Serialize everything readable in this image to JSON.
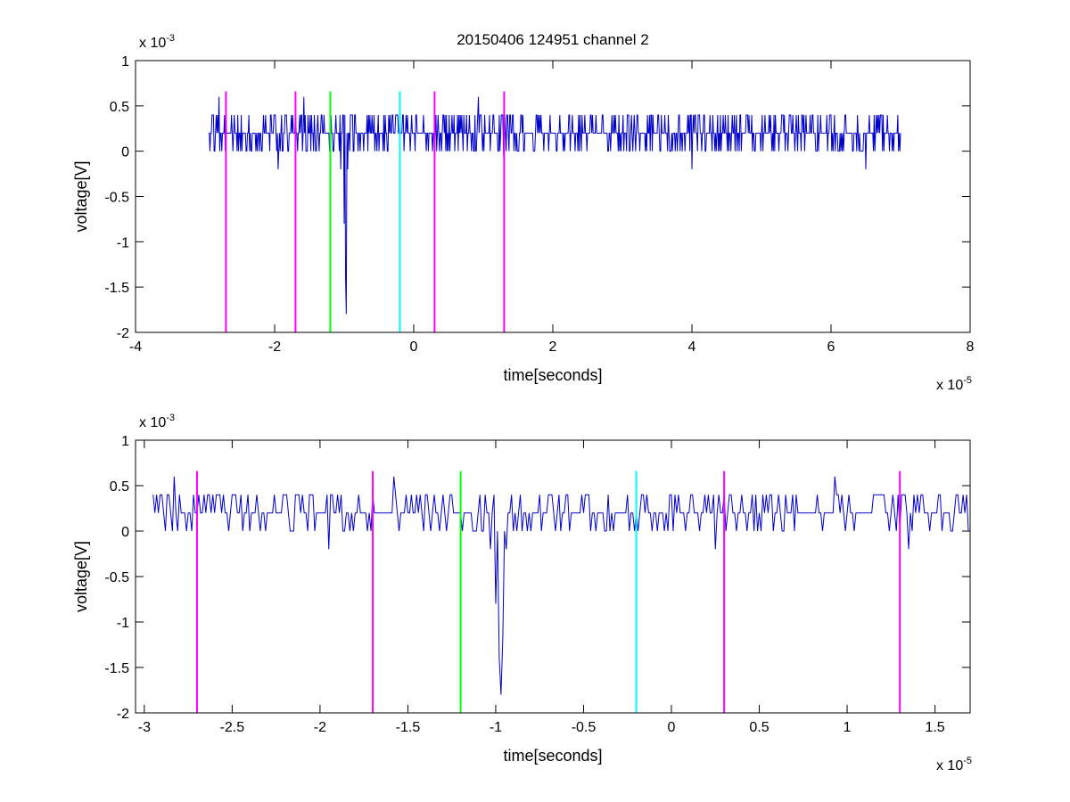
{
  "chart_data": [
    {
      "type": "line",
      "title": "20150406 124951 channel 2",
      "xlabel": "time[seconds]",
      "ylabel": "voltage[V]",
      "x_exponent_label": "x 10",
      "x_exponent": "-5",
      "y_exponent_label": "x 10",
      "y_exponent": "-3",
      "x_scale": 1e-05,
      "y_scale": 0.001,
      "xlim": [
        -4e-05,
        8e-05
      ],
      "ylim": [
        -0.002,
        0.001
      ],
      "x_ticks": [
        -4e-05,
        -2e-05,
        0,
        2e-05,
        4e-05,
        6e-05,
        8e-05
      ],
      "x_tick_labels": [
        "-4",
        "-2",
        "0",
        "2",
        "4",
        "6",
        "8"
      ],
      "y_ticks": [
        -0.002,
        -0.0015,
        -0.001,
        -0.0005,
        0,
        0.0005,
        0.001
      ],
      "y_tick_labels": [
        "-2",
        "-1.5",
        "-1",
        "-0.5",
        "0",
        "0.5",
        "1"
      ],
      "grid": false,
      "series": [
        {
          "x_start": -2.95e-05,
          "x_step": 1e-07,
          "x_end": 7e-05,
          "color": "#0000cc",
          "y_levels": [
            0.0002,
            0.0004,
            0,
            0.0002,
            0.0002,
            0.0004,
            0.0002,
            0,
            0.0002,
            0.0004,
            0.0002,
            0.0002,
            0.0004,
            0.0002,
            0,
            0.0002
          ],
          "spikes": [
            {
              "x": -2.9e-05,
              "y": 0.0004
            },
            {
              "x": -2.8e-05,
              "y": 0.0006
            },
            {
              "x": -2.7e-05,
              "y": 0.0004
            },
            {
              "x": -1.95e-05,
              "y": -0.0002
            },
            {
              "x": -1.7e-05,
              "y": 0.0005
            },
            {
              "x": -1.58e-05,
              "y": 0.0006
            },
            {
              "x": -1.05e-05,
              "y": -0.0002
            },
            {
              "x": -1e-05,
              "y": -0.0008
            },
            {
              "x": -9.8e-06,
              "y": -0.0014
            },
            {
              "x": -9.7e-06,
              "y": -0.0018
            },
            {
              "x": -9.5e-06,
              "y": -0.0002
            },
            {
              "x": 3e-06,
              "y": -0.0002
            },
            {
              "x": 9.3e-06,
              "y": 0.0006
            },
            {
              "x": 1.3e-05,
              "y": -0.0002
            },
            {
              "x": 4e-05,
              "y": -0.0002
            },
            {
              "x": 6.5e-05,
              "y": -0.0002
            }
          ]
        }
      ],
      "markers": [
        {
          "x": -2.7e-05,
          "color": "#ff00ff"
        },
        {
          "x": -1.7e-05,
          "color": "#ff00ff"
        },
        {
          "x": -1.2e-05,
          "color": "#00ff00"
        },
        {
          "x": -2e-06,
          "color": "#00ffff"
        },
        {
          "x": 3e-06,
          "color": "#ff00ff"
        },
        {
          "x": 1.3e-05,
          "color": "#ff00ff"
        }
      ],
      "marker_range": [
        -0.002,
        0.00066
      ]
    },
    {
      "type": "line",
      "title": "",
      "xlabel": "time[seconds]",
      "ylabel": "voltage[V]",
      "x_exponent_label": "x 10",
      "x_exponent": "-5",
      "y_exponent_label": "x 10",
      "y_exponent": "-3",
      "x_scale": 1e-05,
      "y_scale": 0.001,
      "xlim": [
        -3.05e-05,
        1.7e-05
      ],
      "ylim": [
        -0.002,
        0.001
      ],
      "x_ticks": [
        -3e-05,
        -2.5e-05,
        -2e-05,
        -1.5e-05,
        -1e-05,
        -5e-06,
        0,
        5e-06,
        1e-05,
        1.5e-05
      ],
      "x_tick_labels": [
        "-3",
        "-2.5",
        "-2",
        "-1.5",
        "-1",
        "-0.5",
        "0",
        "0.5",
        "1",
        "1.5"
      ],
      "y_ticks": [
        -0.002,
        -0.0015,
        -0.001,
        -0.0005,
        0,
        0.0005,
        0.001
      ],
      "y_tick_labels": [
        "-2",
        "-1.5",
        "-1",
        "-0.5",
        "0",
        "0.5",
        "1"
      ],
      "grid": false,
      "series": [
        {
          "x_start": -2.95e-05,
          "x_step": 1e-07,
          "x_end": 1.7e-05,
          "color": "#0000cc",
          "y_levels": [
            0.0002,
            0.0004,
            0,
            0.0002,
            0.0002,
            0.0004,
            0.0002,
            0,
            0.0002,
            0.0004,
            0.0002,
            0.0002,
            0.0004,
            0.0002,
            0,
            0.0002
          ],
          "spikes": [
            {
              "x": -2.83e-05,
              "y": 0.0006
            },
            {
              "x": -2.69e-05,
              "y": 0.0004
            },
            {
              "x": -1.95e-05,
              "y": -0.0002
            },
            {
              "x": -1.7e-05,
              "y": 0.0004
            },
            {
              "x": -1.58e-05,
              "y": 0.0006
            },
            {
              "x": -1.03e-05,
              "y": -0.0002
            },
            {
              "x": -1e-05,
              "y": -0.0008
            },
            {
              "x": -9.8e-06,
              "y": -0.0014
            },
            {
              "x": -9.7e-06,
              "y": -0.0018
            },
            {
              "x": -9.6e-06,
              "y": -0.0012
            },
            {
              "x": -9.4e-06,
              "y": -0.0002
            },
            {
              "x": 2.5e-06,
              "y": -0.0002
            },
            {
              "x": 9.3e-06,
              "y": 0.0006
            },
            {
              "x": 1.35e-05,
              "y": -0.0002
            }
          ]
        }
      ],
      "markers": [
        {
          "x": -2.7e-05,
          "color": "#ff00ff"
        },
        {
          "x": -1.7e-05,
          "color": "#ff00ff"
        },
        {
          "x": -1.2e-05,
          "color": "#00ff00"
        },
        {
          "x": -2e-06,
          "color": "#00ffff"
        },
        {
          "x": 3e-06,
          "color": "#ff00ff"
        },
        {
          "x": 1.3e-05,
          "color": "#ff00ff"
        }
      ],
      "marker_range": [
        -0.002,
        0.00066
      ]
    }
  ]
}
